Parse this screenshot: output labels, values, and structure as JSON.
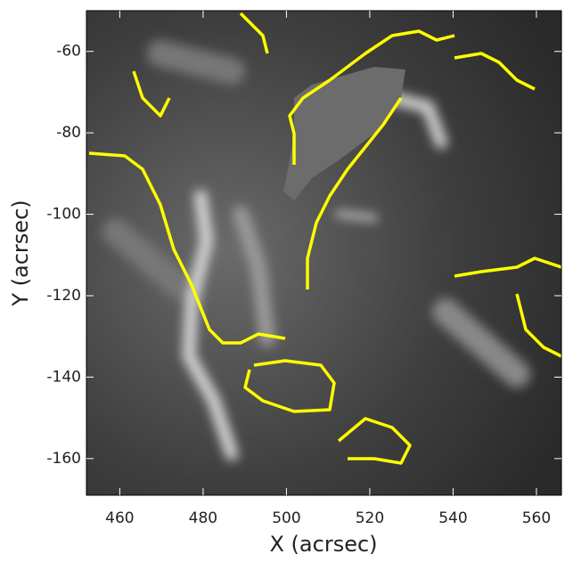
{
  "chart_data": {
    "type": "image",
    "xlabel": "X (acrsec)",
    "ylabel": "Y (acrsec)",
    "xlim": [
      452,
      566
    ],
    "ylim": [
      -169,
      -50
    ],
    "xticks": [
      460,
      480,
      500,
      520,
      540,
      560
    ],
    "yticks": [
      -60,
      -80,
      -100,
      -120,
      -140,
      -160
    ]
  }
}
